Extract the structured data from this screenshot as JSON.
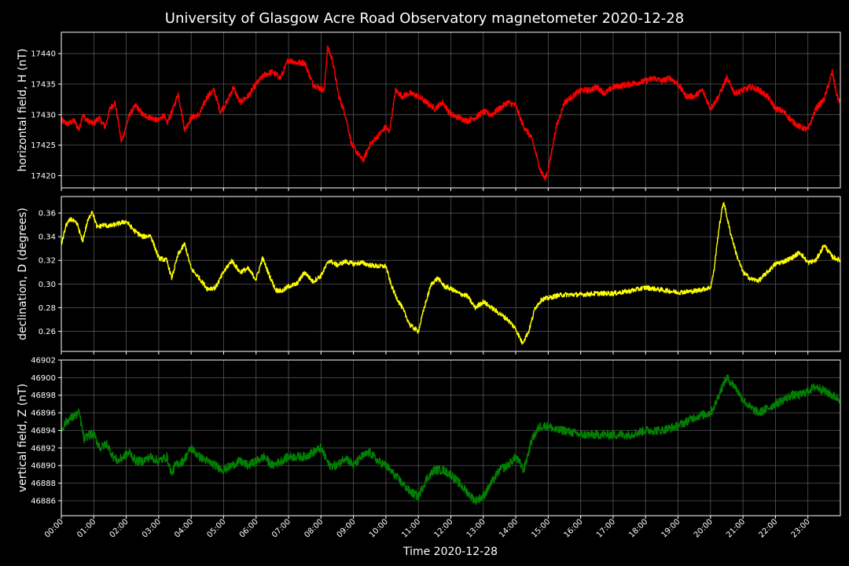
{
  "chart_data": {
    "type": "line",
    "title": "University of Glasgow Acre Road Observatory magnetometer 2020-12-28",
    "xlabel": "Time 2020-12-28",
    "xticks": [
      "00:00",
      "01:00",
      "02:00",
      "03:00",
      "04:00",
      "05:00",
      "06:00",
      "07:00",
      "08:00",
      "09:00",
      "10:00",
      "11:00",
      "12:00",
      "13:00",
      "14:00",
      "15:00",
      "16:00",
      "17:00",
      "18:00",
      "19:00",
      "20:00",
      "21:00",
      "22:00",
      "23:00"
    ],
    "xlim": [
      0,
      24
    ],
    "grid": true,
    "colors": {
      "background": "#000000",
      "grid": "#555555",
      "axes": "#ffffff",
      "text": "#ffffff"
    },
    "panels": [
      {
        "ylabel": "horizontal field, H (nT)",
        "color": "#ff0000",
        "ylim": [
          17418,
          17443.5
        ],
        "yticks": [
          "17420",
          "17425",
          "17430",
          "17435",
          "17440"
        ],
        "ytick_values": [
          17420,
          17425,
          17430,
          17435,
          17440
        ],
        "noise": 0.5,
        "x": [
          0,
          0.2,
          0.4,
          0.55,
          0.65,
          0.8,
          1.0,
          1.15,
          1.35,
          1.5,
          1.65,
          1.75,
          1.85,
          2.1,
          2.3,
          2.5,
          2.75,
          3.0,
          3.15,
          3.25,
          3.45,
          3.6,
          3.8,
          4.0,
          4.25,
          4.5,
          4.7,
          4.9,
          5.1,
          5.3,
          5.5,
          5.75,
          6.0,
          6.25,
          6.5,
          6.75,
          7.0,
          7.25,
          7.5,
          7.75,
          7.9,
          8.1,
          8.2,
          8.35,
          8.55,
          8.75,
          8.95,
          9.15,
          9.3,
          9.5,
          9.75,
          10.0,
          10.1,
          10.3,
          10.5,
          10.75,
          11.0,
          11.25,
          11.5,
          11.75,
          12.0,
          12.25,
          12.5,
          12.75,
          13.0,
          13.25,
          13.5,
          13.75,
          14.0,
          14.2,
          14.5,
          14.75,
          14.9,
          15.0,
          15.25,
          15.5,
          15.75,
          16.0,
          16.25,
          16.5,
          16.75,
          17.0,
          17.5,
          18.0,
          18.25,
          18.5,
          18.75,
          19.0,
          19.25,
          19.5,
          19.75,
          20.0,
          20.25,
          20.5,
          20.75,
          21.0,
          21.25,
          21.5,
          21.75,
          22.0,
          22.25,
          22.5,
          22.75,
          23.0,
          23.25,
          23.5,
          23.75,
          23.9,
          24.0
        ],
        "y": [
          17429,
          17428.5,
          17429,
          17427.5,
          17430,
          17429,
          17428.5,
          17429.5,
          17428,
          17431,
          17432,
          17429,
          17425.5,
          17430,
          17431.5,
          17430,
          17429.5,
          17429,
          17430,
          17428.5,
          17431,
          17433.5,
          17427.5,
          17429.5,
          17430,
          17433,
          17434,
          17430.5,
          17432,
          17434.5,
          17432,
          17433,
          17435,
          17436.5,
          17437,
          17436,
          17439,
          17438.5,
          17438.5,
          17435,
          17434.5,
          17434,
          17441,
          17439,
          17433,
          17430,
          17425,
          17423.5,
          17422.5,
          17425,
          17426.5,
          17428,
          17427,
          17434,
          17433,
          17433.5,
          17433,
          17432,
          17431,
          17432,
          17430,
          17429.5,
          17429,
          17429.5,
          17430.5,
          17430,
          17431,
          17432,
          17431.5,
          17428.5,
          17426,
          17421,
          17419.5,
          17421,
          17428,
          17432,
          17433,
          17434,
          17434,
          17434.5,
          17433.5,
          17434.5,
          17435,
          17435.5,
          17436,
          17435.5,
          17436,
          17435,
          17433,
          17433,
          17434,
          17431,
          17433,
          17436,
          17433.5,
          17434,
          17434.5,
          17434,
          17433,
          17431,
          17430.5,
          17429,
          17428,
          17427.5,
          17431,
          17432.5,
          17437,
          17433,
          17432
        ]
      },
      {
        "ylabel": "declination, D (degrees)",
        "color": "#ffff00",
        "ylim": [
          0.243,
          0.374
        ],
        "yticks": [
          "0.26",
          "0.28",
          "0.30",
          "0.32",
          "0.34",
          "0.36"
        ],
        "ytick_values": [
          0.26,
          0.28,
          0.3,
          0.32,
          0.34,
          0.36
        ],
        "noise": 0.002,
        "x": [
          0,
          0.15,
          0.3,
          0.5,
          0.65,
          0.8,
          0.95,
          1.1,
          1.3,
          1.5,
          1.75,
          2.0,
          2.25,
          2.5,
          2.75,
          3.0,
          3.25,
          3.4,
          3.6,
          3.8,
          4.0,
          4.25,
          4.5,
          4.75,
          5.0,
          5.25,
          5.5,
          5.75,
          6.0,
          6.2,
          6.4,
          6.6,
          6.8,
          7.0,
          7.25,
          7.5,
          7.75,
          8.0,
          8.25,
          8.5,
          8.75,
          9.0,
          9.25,
          9.5,
          9.75,
          10.0,
          10.15,
          10.3,
          10.5,
          10.75,
          11.0,
          11.2,
          11.4,
          11.6,
          11.8,
          12.0,
          12.25,
          12.5,
          12.75,
          13.0,
          13.25,
          13.5,
          13.75,
          14.0,
          14.2,
          14.4,
          14.6,
          14.8,
          15.0,
          15.25,
          15.5,
          16.0,
          16.5,
          17.0,
          17.5,
          18.0,
          18.5,
          19.0,
          19.5,
          20.0,
          20.1,
          20.25,
          20.4,
          20.6,
          20.8,
          21.0,
          21.25,
          21.5,
          21.75,
          22.0,
          22.25,
          22.5,
          22.75,
          23.0,
          23.25,
          23.5,
          23.75,
          24.0
        ],
        "y": [
          0.333,
          0.35,
          0.355,
          0.35,
          0.336,
          0.352,
          0.362,
          0.348,
          0.35,
          0.349,
          0.351,
          0.353,
          0.345,
          0.34,
          0.341,
          0.322,
          0.32,
          0.305,
          0.325,
          0.334,
          0.313,
          0.305,
          0.296,
          0.297,
          0.31,
          0.32,
          0.31,
          0.313,
          0.304,
          0.322,
          0.308,
          0.295,
          0.294,
          0.298,
          0.3,
          0.31,
          0.302,
          0.307,
          0.32,
          0.316,
          0.319,
          0.317,
          0.318,
          0.316,
          0.315,
          0.315,
          0.3,
          0.29,
          0.28,
          0.265,
          0.26,
          0.282,
          0.3,
          0.305,
          0.298,
          0.296,
          0.292,
          0.29,
          0.28,
          0.285,
          0.28,
          0.275,
          0.27,
          0.262,
          0.25,
          0.26,
          0.28,
          0.287,
          0.288,
          0.29,
          0.291,
          0.291,
          0.292,
          0.292,
          0.294,
          0.297,
          0.295,
          0.293,
          0.294,
          0.297,
          0.31,
          0.345,
          0.37,
          0.345,
          0.325,
          0.31,
          0.304,
          0.303,
          0.31,
          0.317,
          0.319,
          0.322,
          0.327,
          0.318,
          0.32,
          0.333,
          0.323,
          0.32
        ]
      },
      {
        "ylabel": "vertical field, Z (nT)",
        "color": "#008000",
        "ylim": [
          46884.3,
          46902
        ],
        "yticks": [
          "46886",
          "46888",
          "46890",
          "46892",
          "46894",
          "46896",
          "46898",
          "46900",
          "46902"
        ],
        "ytick_values": [
          46886,
          46888,
          46890,
          46892,
          46894,
          46896,
          46898,
          46900,
          46902
        ],
        "noise": 0.5,
        "x": [
          0,
          0.15,
          0.35,
          0.55,
          0.7,
          0.85,
          1.0,
          1.2,
          1.4,
          1.6,
          1.75,
          1.9,
          2.1,
          2.3,
          2.5,
          2.75,
          3.0,
          3.25,
          3.4,
          3.5,
          3.75,
          4.0,
          4.25,
          4.5,
          4.75,
          5.0,
          5.25,
          5.5,
          5.75,
          6.0,
          6.25,
          6.5,
          7.0,
          7.5,
          8.0,
          8.25,
          8.5,
          8.75,
          9.0,
          9.25,
          9.5,
          9.75,
          10.0,
          10.25,
          10.5,
          10.75,
          11.0,
          11.25,
          11.5,
          11.75,
          12.0,
          12.25,
          12.5,
          12.75,
          13.0,
          13.25,
          13.5,
          13.75,
          14.0,
          14.25,
          14.5,
          14.75,
          15.0,
          15.25,
          15.5,
          16.0,
          16.5,
          17.0,
          17.5,
          18.0,
          18.5,
          19.0,
          19.5,
          20.0,
          20.15,
          20.3,
          20.5,
          20.75,
          21.0,
          21.25,
          21.5,
          21.75,
          22.0,
          22.25,
          22.5,
          22.75,
          23.0,
          23.25,
          23.5,
          23.75,
          24.0
        ],
        "y": [
          46894,
          46895,
          46895.5,
          46896,
          46893,
          46893.5,
          46893.5,
          46892,
          46892.5,
          46891,
          46890.5,
          46891,
          46891.5,
          46890.5,
          46890.5,
          46891,
          46890.5,
          46891,
          46889,
          46890,
          46890.5,
          46892,
          46891,
          46890.5,
          46890,
          46889.5,
          46890,
          46890.5,
          46890,
          46890.5,
          46891,
          46890,
          46891,
          46891,
          46892,
          46890,
          46890,
          46891,
          46890,
          46891,
          46891.5,
          46890.5,
          46890,
          46889,
          46888,
          46887,
          46886.5,
          46888.5,
          46889.5,
          46889.5,
          46889,
          46888,
          46887,
          46886,
          46886.5,
          46888,
          46889.5,
          46890,
          46891,
          46889.5,
          46893,
          46894.5,
          46894.5,
          46894,
          46894,
          46893.5,
          46893.5,
          46893.5,
          46893.5,
          46894,
          46894,
          46894.5,
          46895.5,
          46896,
          46897,
          46898.5,
          46900,
          46899,
          46897.5,
          46896.5,
          46896,
          46896.5,
          46897,
          46897.5,
          46898,
          46898,
          46898.5,
          46899,
          46898.5,
          46898,
          46897.5
        ]
      }
    ]
  }
}
